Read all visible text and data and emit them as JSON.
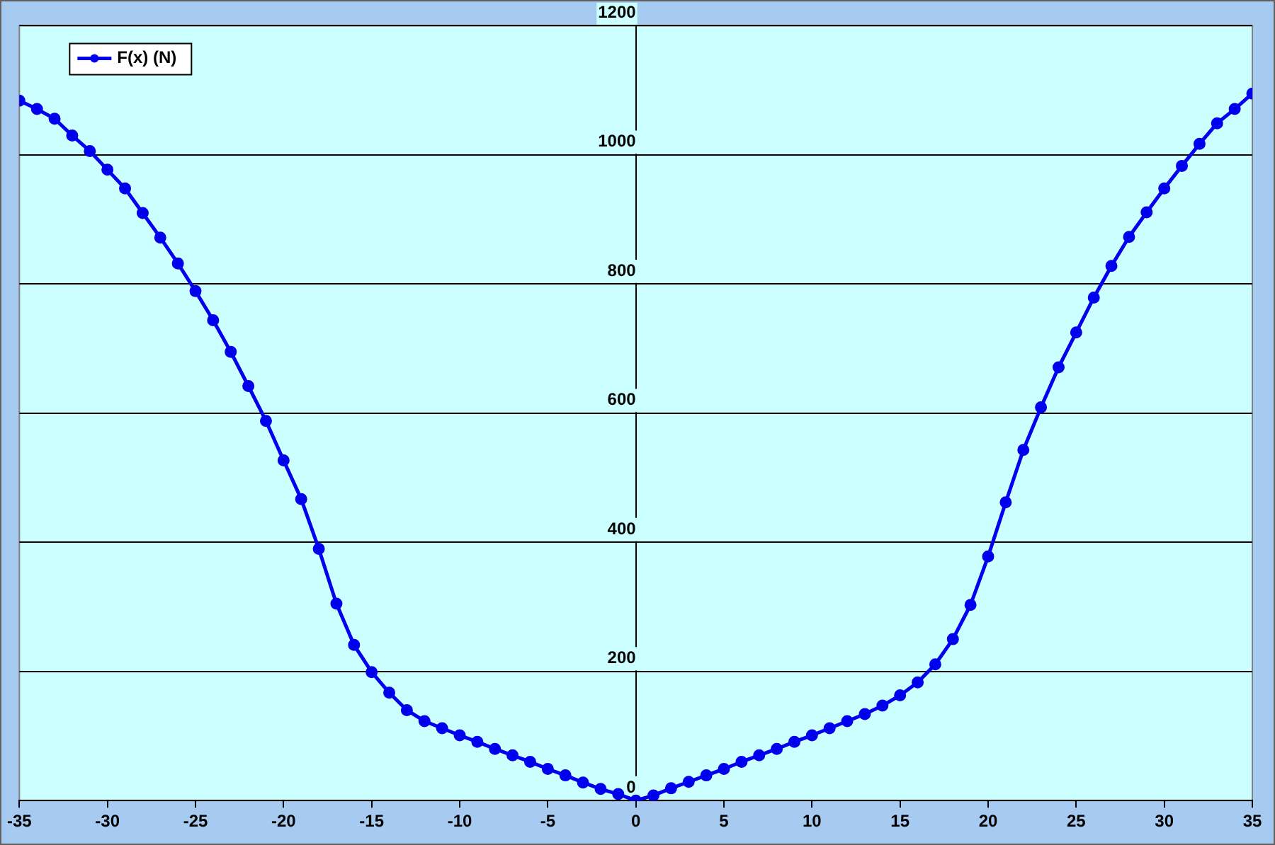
{
  "chart_data": {
    "type": "line",
    "x": [
      -35,
      -34,
      -33,
      -32,
      -31,
      -30,
      -29,
      -28,
      -27,
      -26,
      -25,
      -24,
      -23,
      -22,
      -21,
      -20,
      -19,
      -18,
      -17,
      -16,
      -15,
      -14,
      -13,
      -12,
      -11,
      -10,
      -9,
      -8,
      -7,
      -6,
      -5,
      -4,
      -3,
      -2,
      -1,
      0,
      1,
      2,
      3,
      4,
      5,
      6,
      7,
      8,
      9,
      10,
      11,
      12,
      13,
      14,
      15,
      16,
      17,
      18,
      19,
      20,
      21,
      22,
      23,
      24,
      25,
      26,
      27,
      28,
      29,
      30,
      31,
      32,
      33,
      34,
      35
    ],
    "series": [
      {
        "name": "F(x) (N)",
        "color": "#0000ee",
        "values": [
          1084,
          1071,
          1056,
          1030,
          1006,
          977,
          948,
          910,
          872,
          832,
          789,
          744,
          695,
          642,
          588,
          527,
          467,
          390,
          305,
          241,
          199,
          167,
          140,
          123,
          112,
          101,
          91,
          80,
          70,
          60,
          49,
          39,
          28,
          18,
          10,
          0,
          8,
          19,
          29,
          39,
          49,
          60,
          70,
          80,
          91,
          101,
          112,
          123,
          134,
          147,
          163,
          183,
          211,
          250,
          303,
          378,
          462,
          543,
          609,
          671,
          725,
          779,
          828,
          873,
          911,
          948,
          983,
          1017,
          1049,
          1071,
          1095
        ]
      }
    ],
    "xlim": [
      -35,
      35
    ],
    "xticks": [
      -35,
      -30,
      -25,
      -20,
      -15,
      -10,
      -5,
      0,
      5,
      10,
      15,
      20,
      25,
      30,
      35
    ],
    "ylim": [
      0,
      1200
    ],
    "yticks": [
      0,
      200,
      400,
      600,
      800,
      1000,
      1200
    ],
    "grid": "y",
    "legend": "top left",
    "marker": "circle",
    "line_style": "solid"
  }
}
